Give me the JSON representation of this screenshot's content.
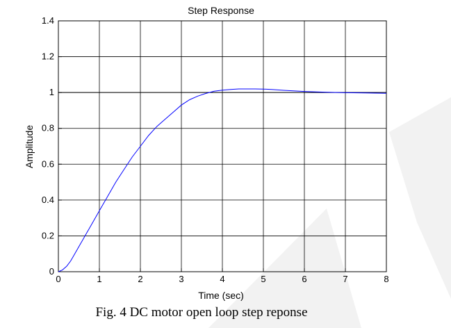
{
  "caption": "Fig. 4 DC motor open loop step reponse",
  "colors": {
    "response": "#0000ff",
    "grid": "#000000",
    "reference": "#000000",
    "watermark": "#f2f2f2"
  },
  "chart_data": {
    "type": "line",
    "title": "Step Response",
    "xlabel": "Time (sec)",
    "ylabel": "Amplitude",
    "xlim": [
      0,
      8
    ],
    "ylim": [
      0,
      1.4
    ],
    "xticks": [
      0,
      1,
      2,
      3,
      4,
      5,
      6,
      7,
      8
    ],
    "yticks": [
      0,
      0.2,
      0.4,
      0.6,
      0.8,
      1,
      1.2,
      1.4
    ],
    "grid": true,
    "reference_line": 1,
    "series": [
      {
        "x": [
          0,
          0.1,
          0.2,
          0.3,
          0.4,
          0.5,
          0.6,
          0.7,
          0.8,
          1.0,
          1.2,
          1.4,
          1.6,
          1.8,
          2.0,
          2.2,
          2.4,
          2.6,
          2.8,
          3.0,
          3.2,
          3.4,
          3.6,
          3.8,
          4.0,
          4.2,
          4.4,
          4.6,
          4.8,
          5.0,
          5.2,
          5.5,
          6.0,
          6.5,
          7.0,
          7.5,
          8.0
        ],
        "y": [
          0,
          0.01,
          0.03,
          0.06,
          0.1,
          0.14,
          0.18,
          0.22,
          0.26,
          0.34,
          0.42,
          0.5,
          0.57,
          0.64,
          0.7,
          0.76,
          0.81,
          0.85,
          0.89,
          0.93,
          0.96,
          0.98,
          0.995,
          1.007,
          1.013,
          1.017,
          1.02,
          1.02,
          1.02,
          1.019,
          1.017,
          1.012,
          1.006,
          1.002,
          0.999,
          0.998,
          0.996
        ]
      }
    ]
  }
}
